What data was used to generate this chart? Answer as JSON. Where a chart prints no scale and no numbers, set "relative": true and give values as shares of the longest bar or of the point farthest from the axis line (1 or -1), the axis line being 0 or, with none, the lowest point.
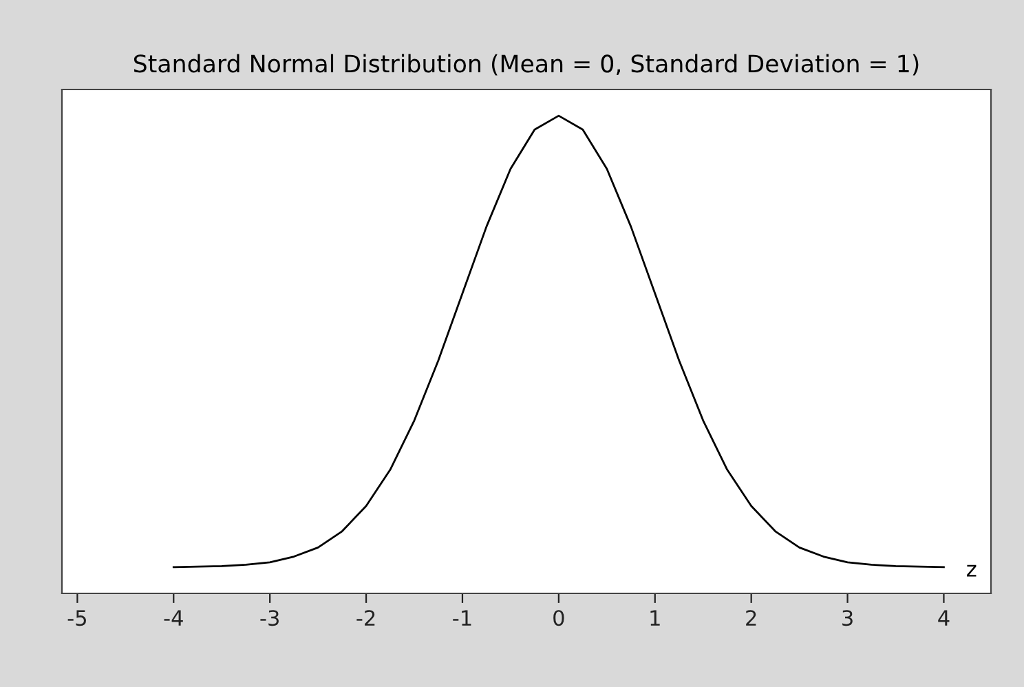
{
  "chart_data": {
    "type": "line",
    "title": "Standard Normal Distribution (Mean = 0, Standard Deviation = 1)",
    "xlabel": "z",
    "relative": true,
    "xlim": [
      -5.16,
      4.49
    ],
    "xticks": [
      -5,
      -4,
      -3,
      -2,
      -1,
      0,
      1,
      2,
      3,
      4
    ],
    "x": [
      -4,
      -3.75,
      -3.5,
      -3.25,
      -3,
      -2.75,
      -2.5,
      -2.25,
      -2,
      -1.75,
      -1.5,
      -1.25,
      -1,
      -0.75,
      -0.5,
      -0.25,
      0,
      0.25,
      0.5,
      0.75,
      1,
      1.25,
      1.5,
      1.75,
      2,
      2.25,
      2.5,
      2.75,
      3,
      3.25,
      3.5,
      3.75,
      4
    ],
    "series": [
      {
        "color": "#000000",
        "values": [
          0.055,
          0.056,
          0.057,
          0.06,
          0.065,
          0.077,
          0.096,
          0.13,
          0.183,
          0.259,
          0.362,
          0.488,
          0.628,
          0.768,
          0.889,
          0.971,
          1.0,
          0.971,
          0.889,
          0.768,
          0.628,
          0.488,
          0.362,
          0.259,
          0.183,
          0.13,
          0.096,
          0.077,
          0.065,
          0.06,
          0.057,
          0.056,
          0.055
        ]
      }
    ],
    "grid": false,
    "legend": false,
    "marker": "none",
    "line_style": "solid"
  }
}
